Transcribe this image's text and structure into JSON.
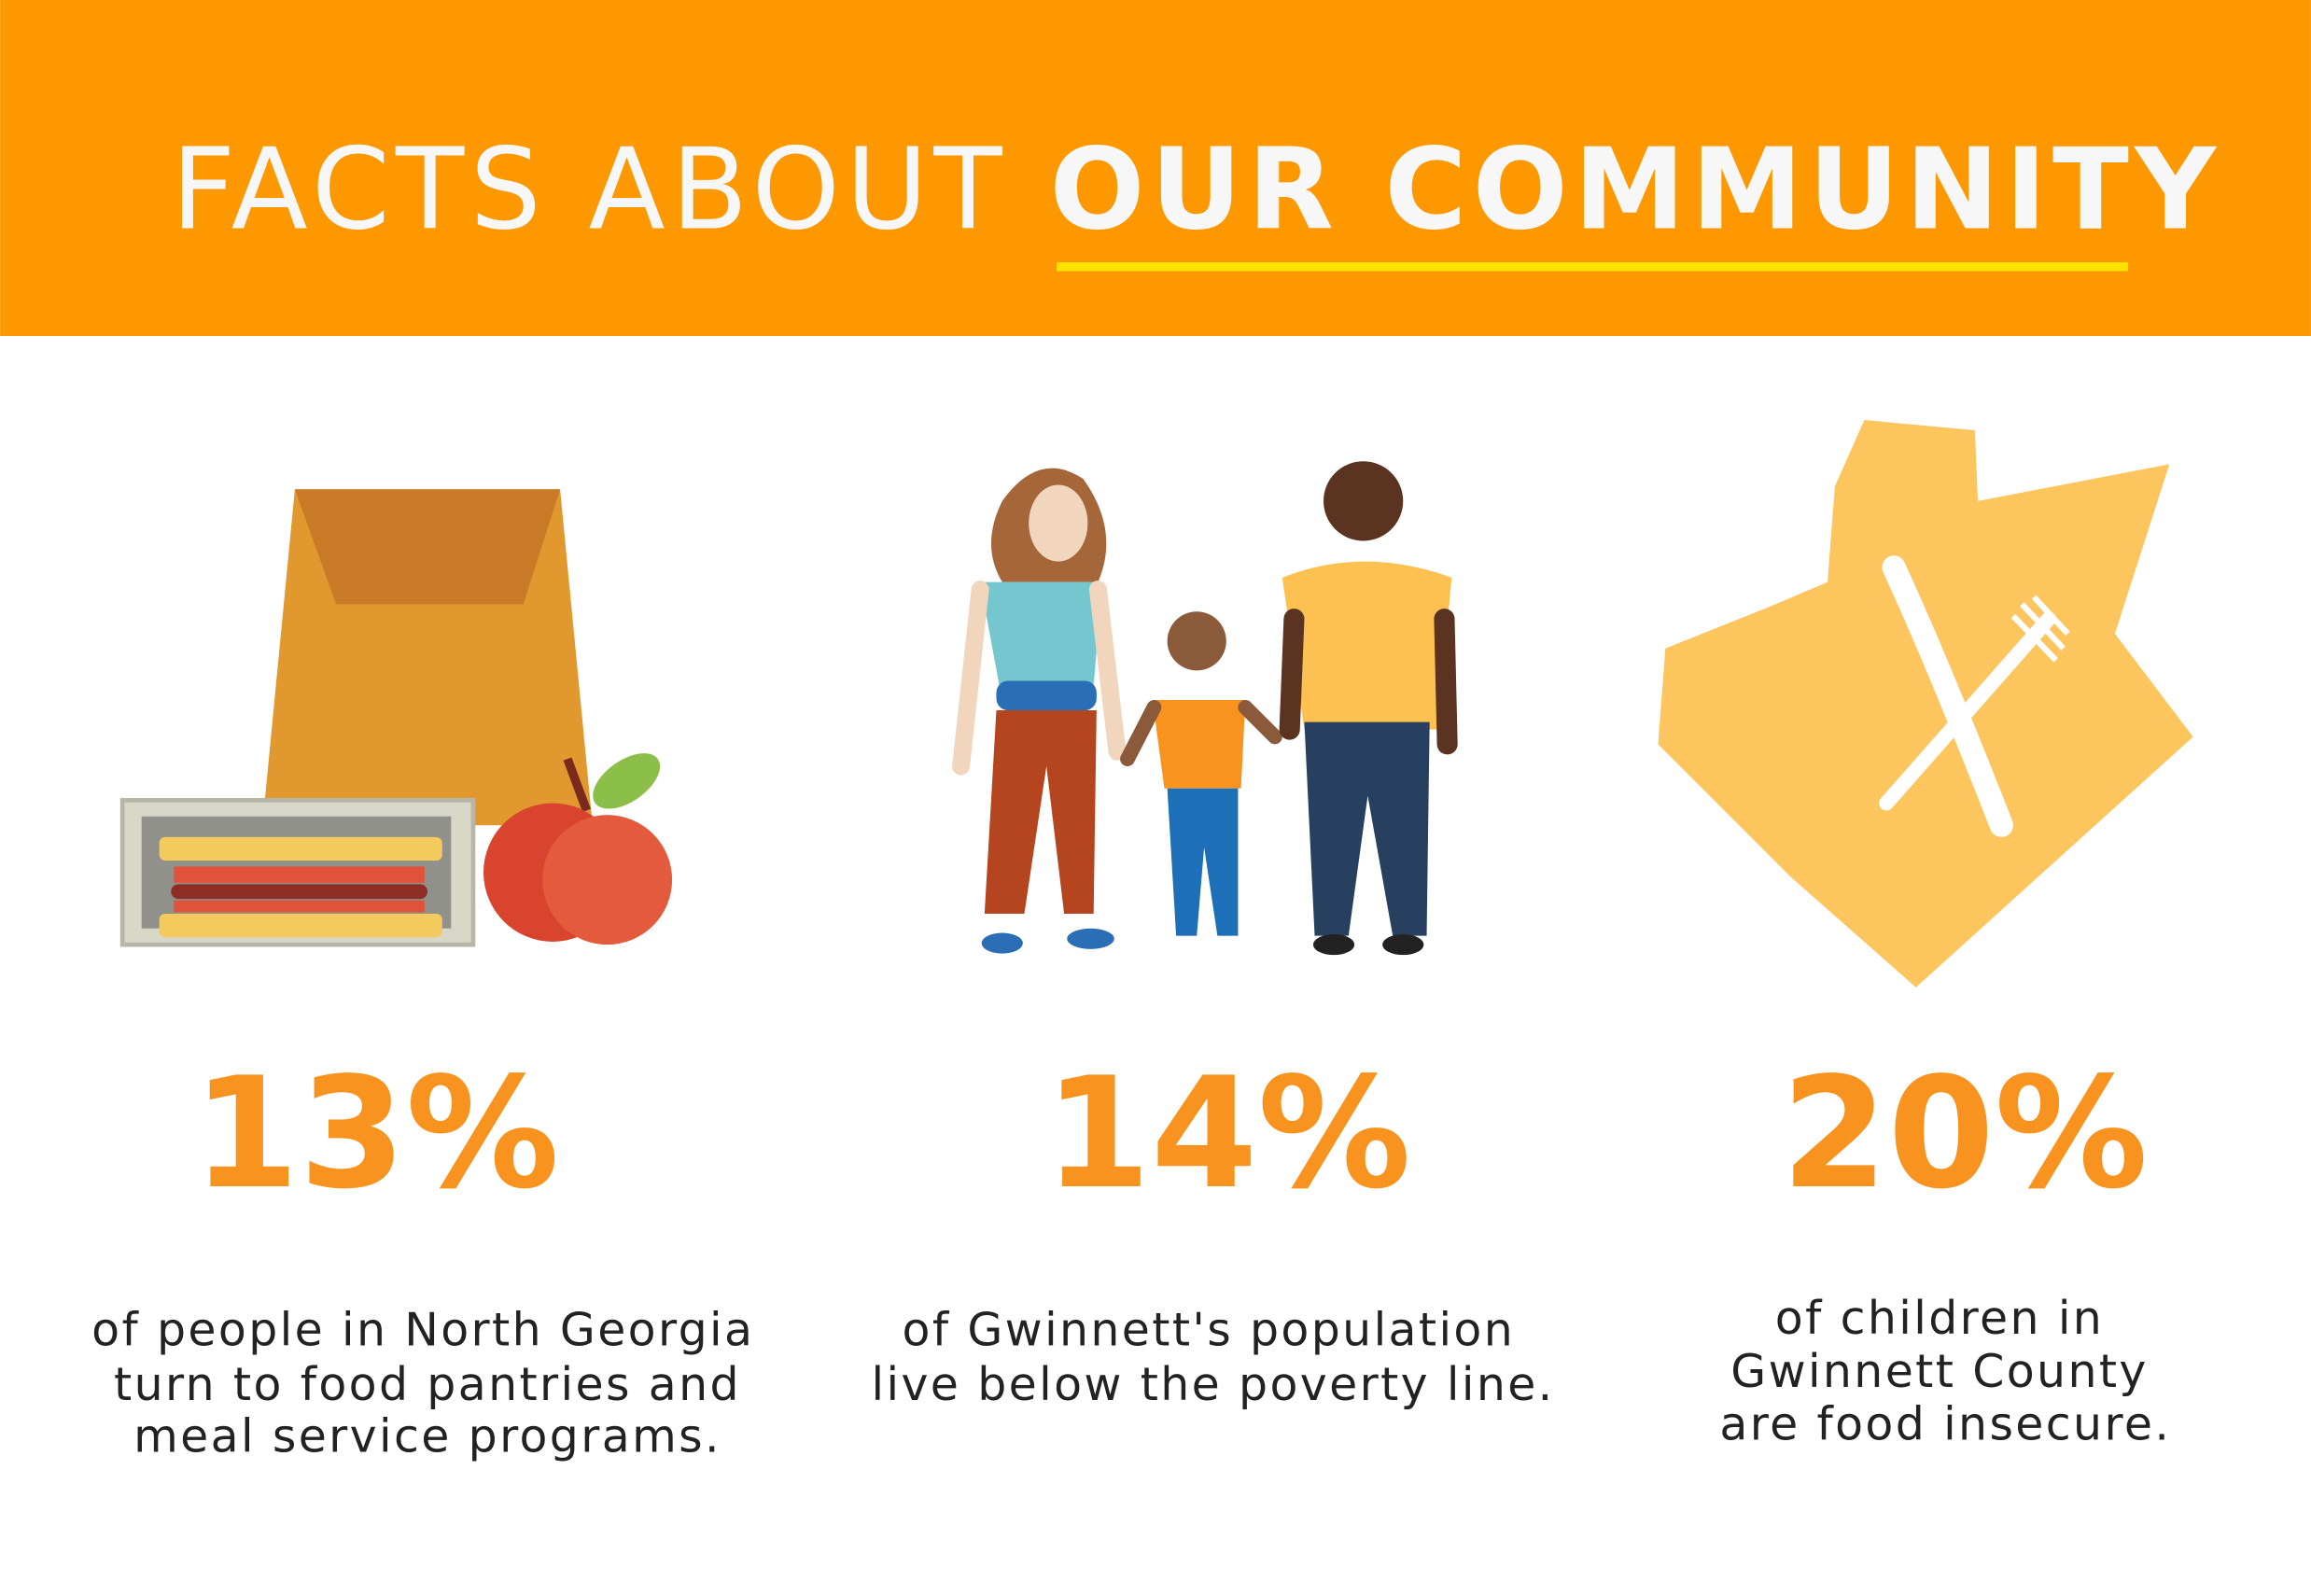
{
  "header": {
    "title_light": "FACTS ABOUT",
    "title_bold": "OUR COMMUNITY"
  },
  "facts": [
    {
      "stat": "13%",
      "lines": [
        "of people in North Georgia",
        "turn to food pantries and",
        "meal service programs."
      ]
    },
    {
      "stat": "14%",
      "lines": [
        "of Gwinnett's population",
        "live below the poverty line."
      ]
    },
    {
      "stat": "20%",
      "lines": [
        "of children in",
        "Gwinnett County",
        "are food insecure."
      ]
    }
  ]
}
